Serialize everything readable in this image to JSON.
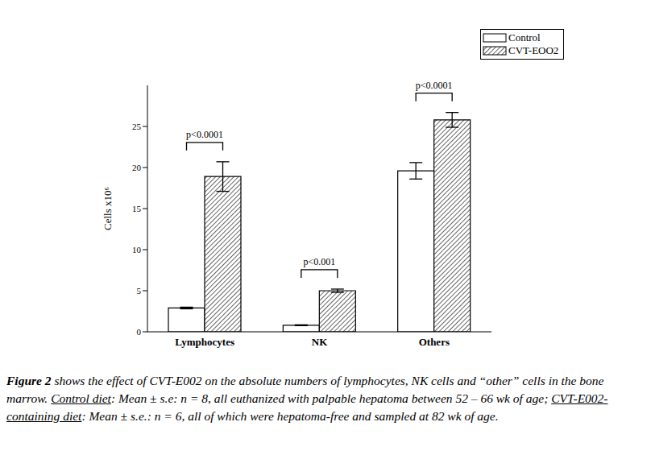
{
  "chart_data": {
    "type": "bar",
    "categories": [
      "Lymphocytes",
      "NK",
      "Others"
    ],
    "series": [
      {
        "name": "Control",
        "color": "#ffffff",
        "values": [
          2.9,
          0.8,
          19.6
        ],
        "errors": [
          0.1,
          0.05,
          1.0
        ]
      },
      {
        "name": "CVT-EOO2",
        "color": "#000000",
        "values": [
          18.9,
          5.0,
          25.8
        ],
        "errors": [
          1.8,
          0.2,
          0.9
        ]
      }
    ],
    "ylim": [
      0,
      30
    ],
    "yticks": [
      0,
      5,
      10,
      15,
      20,
      25
    ],
    "y_label": "Cells x10⁶",
    "legend": "upper right",
    "annotations": [
      {
        "category": "Lymphocytes",
        "text": "p<0.0001"
      },
      {
        "category": "NK",
        "text": "p<0.001"
      },
      {
        "category": "Others",
        "text": "p<0.0001"
      }
    ]
  },
  "caption": [
    "Figure 2",
    " shows the effect of CVT-E002 on the absolute numbers of lymphocytes, NK cells and “other” cells in the bone marrow. ",
    "Control diet",
    ": Mean ± s.e:  n = 8, all euthanized with palpable hepatoma between 52 – 66 wk of age; ",
    "CVT-E002-containing diet",
    ": Mean ± s.e.: n = 6, all of which were hepatoma-free and sampled at 82 wk of age."
  ]
}
